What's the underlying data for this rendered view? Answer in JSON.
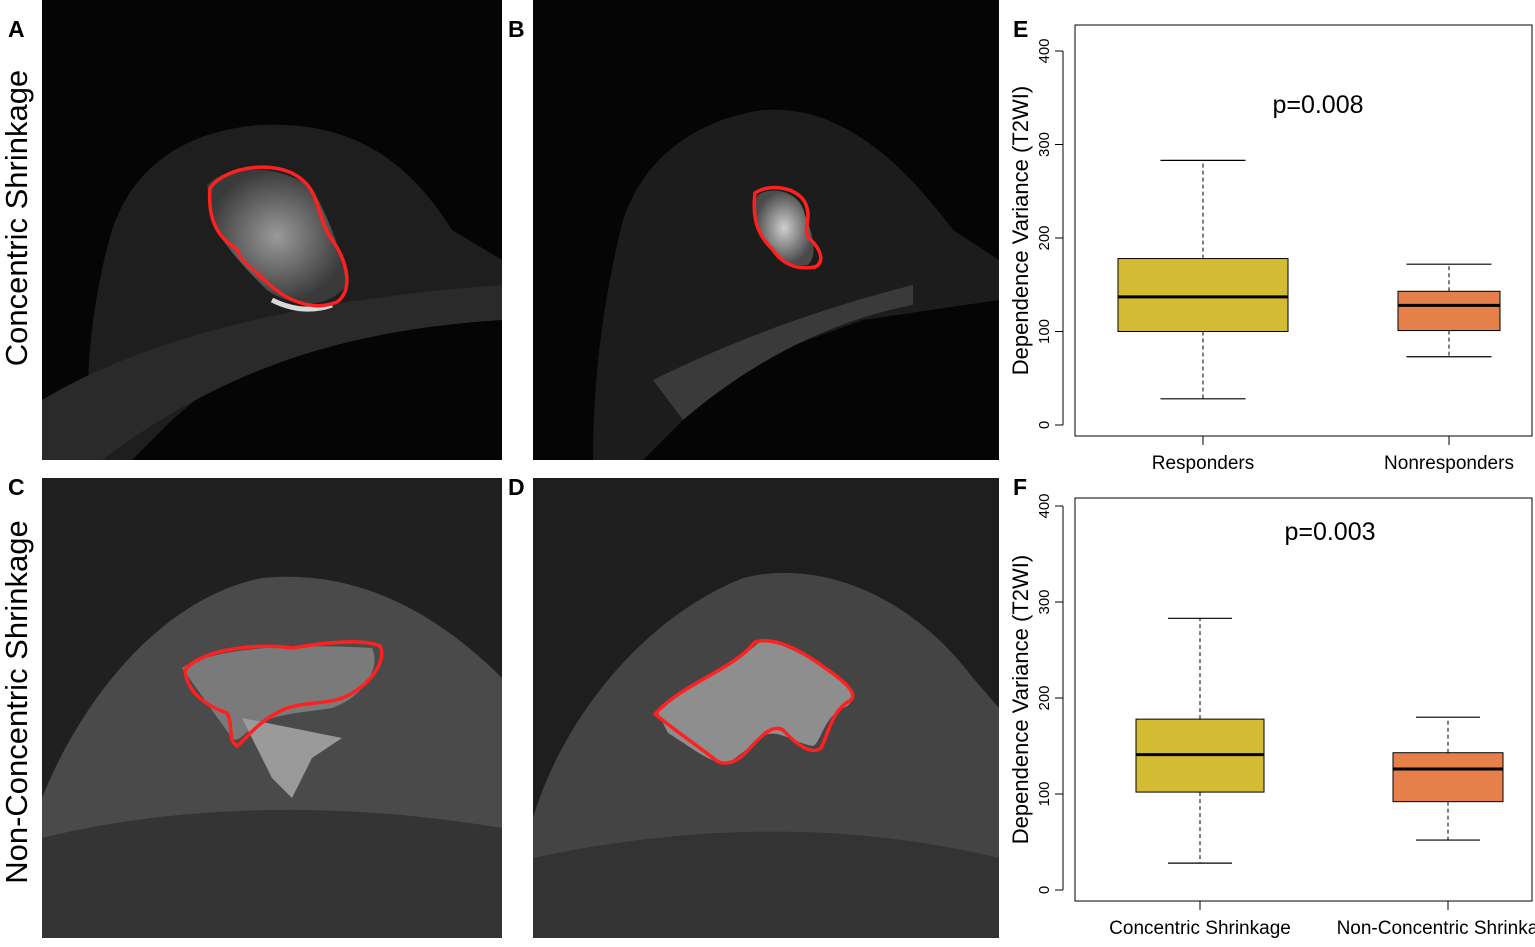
{
  "row_labels": [
    "Concentric Shrinkage",
    "Non-Concentric Shrinkage"
  ],
  "panel_letters": [
    "A",
    "B",
    "C",
    "D",
    "E",
    "F"
  ],
  "chart_data": [
    {
      "panel": "E",
      "type": "box",
      "ylabel": "Dependence Variance  (T2WI)",
      "ylim": [
        0,
        400
      ],
      "yticks": [
        0,
        100,
        200,
        300,
        400
      ],
      "annotation": "p=0.008",
      "categories": [
        "Responders",
        "Nonresponders"
      ],
      "colors": [
        "#d4bb34",
        "#e6804a"
      ],
      "boxes": [
        {
          "whisker_low": 28,
          "q1": 100,
          "median": 137,
          "q3": 178,
          "whisker_high": 283
        },
        {
          "whisker_low": 73,
          "q1": 101,
          "median": 128,
          "q3": 143,
          "whisker_high": 172
        }
      ]
    },
    {
      "panel": "F",
      "type": "box",
      "ylabel": "Dependence Variance  (T2WI)",
      "ylim": [
        0,
        400
      ],
      "yticks": [
        0,
        100,
        200,
        300,
        400
      ],
      "annotation": "p=0.003",
      "categories": [
        "Concentric Shrinkage",
        "Non-Concentric Shrinkage"
      ],
      "colors": [
        "#d4bb34",
        "#e6804a"
      ],
      "boxes": [
        {
          "whisker_low": 28,
          "q1": 102,
          "median": 141,
          "q3": 178,
          "whisker_high": 283
        },
        {
          "whisker_low": 52,
          "q1": 92,
          "median": 126,
          "q3": 143,
          "whisker_high": 180
        }
      ]
    }
  ]
}
